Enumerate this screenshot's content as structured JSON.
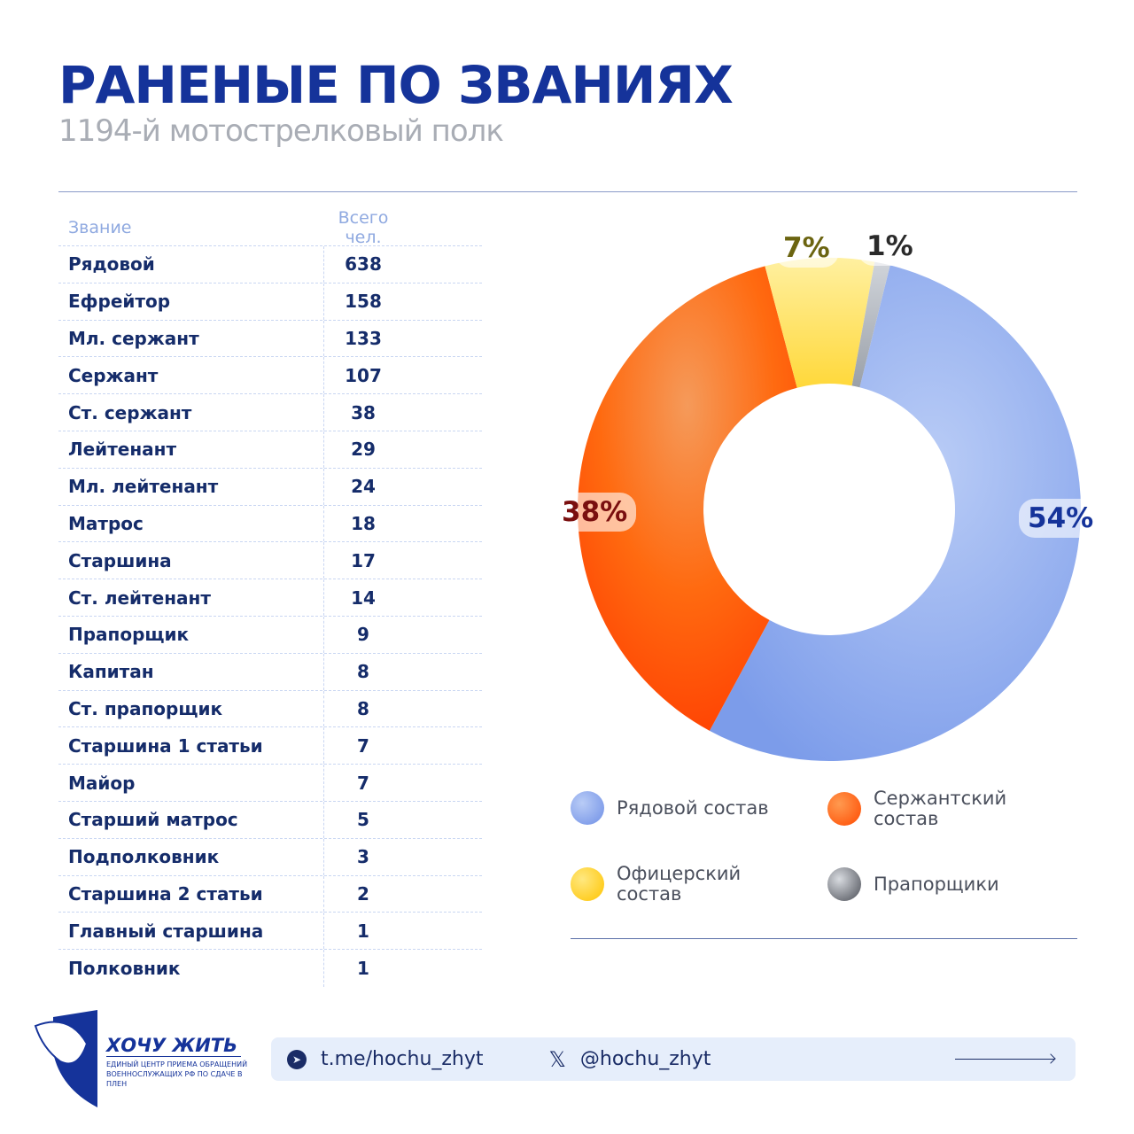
{
  "header": {
    "title": "РАНЕНЫЕ ПО ЗВАНИЯХ",
    "subtitle": "1194-й мотострелковый полк"
  },
  "table": {
    "headers": [
      "Звание",
      "Всего чел."
    ],
    "rows": [
      [
        "Рядовой",
        "638"
      ],
      [
        "Ефрейтор",
        "158"
      ],
      [
        "Мл. сержант",
        "133"
      ],
      [
        "Сержант",
        "107"
      ],
      [
        "Ст. сержант",
        "38"
      ],
      [
        "Лейтенант",
        "29"
      ],
      [
        "Мл. лейтенант",
        "24"
      ],
      [
        "Матрос",
        "18"
      ],
      [
        "Старшина",
        "17"
      ],
      [
        "Ст. лейтенант",
        "14"
      ],
      [
        "Прапорщик",
        "9"
      ],
      [
        "Капитан",
        "8"
      ],
      [
        "Ст. прапорщик",
        "8"
      ],
      [
        "Старшина 1 статьи",
        "7"
      ],
      [
        "Майор",
        "7"
      ],
      [
        "Старший матрос",
        "5"
      ],
      [
        "Подполковник",
        "3"
      ],
      [
        "Старшина  2 статьи",
        "2"
      ],
      [
        "Главный старшина",
        "1"
      ],
      [
        "Полковник",
        "1"
      ]
    ]
  },
  "chart_data": {
    "type": "pie",
    "title": "",
    "categories": [
      "Рядовой состав",
      "Сержантский состав",
      "Офицерский состав",
      "Прапорщики"
    ],
    "values": [
      54,
      38,
      7,
      1
    ],
    "labels": [
      "54%",
      "38%",
      "7%",
      "1%"
    ],
    "colors": [
      "#8eaaf0",
      "#ff6a10",
      "#ffd84a",
      "#a7abb3"
    ],
    "label_colors": [
      "#15339a",
      "#7a0f0f",
      "#6b6410",
      "#2a2a2a"
    ],
    "legend_placement": "bottom"
  },
  "legend": {
    "items": [
      "Рядовой состав",
      "Сержантский состав",
      "Офицерский состав",
      "Прапорщики"
    ]
  },
  "logo": {
    "name": "ХОЧУ ЖИТЬ",
    "tagline": "ЕДИНЫЙ ЦЕНТР ПРИЕМА ОБРАЩЕНИЙ ВОЕННОСЛУЖАЩИХ РФ ПО СДАЧЕ В ПЛЕН"
  },
  "footer": {
    "telegram": "t.me/hochu_zhyt",
    "x": "@hochu_zhyt",
    "x_icon": "𝕏"
  }
}
